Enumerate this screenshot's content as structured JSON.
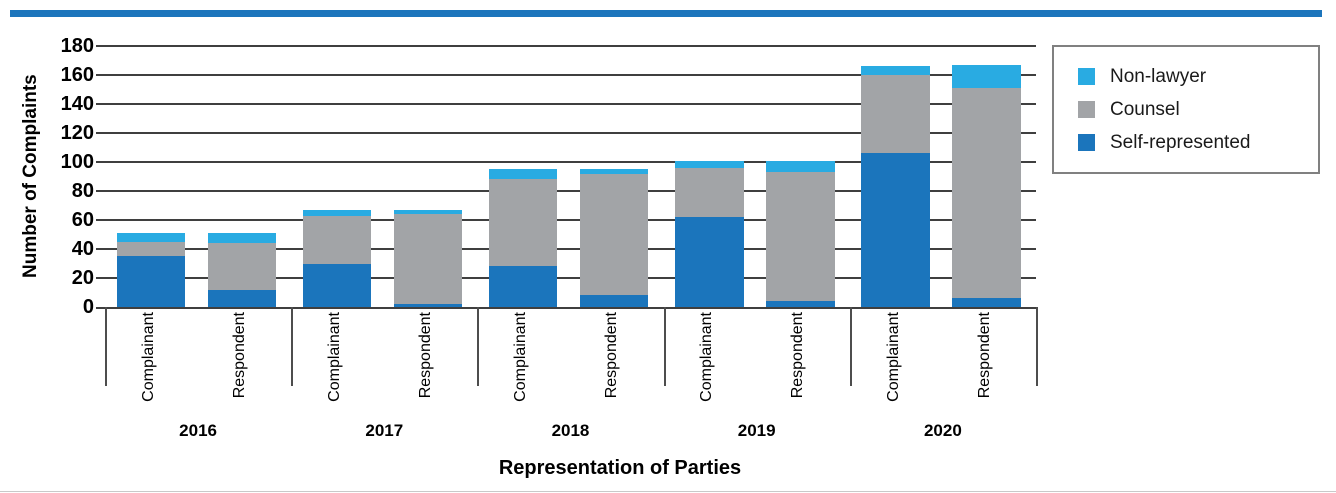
{
  "page": {
    "background": "#ffffff",
    "top_bar_color": "#1C75BC",
    "gridline_color": "#3f3f3f",
    "axis_color": "#3f3f3f"
  },
  "chart_data": {
    "type": "bar",
    "stacked": true,
    "title": "",
    "xlabel": "Representation of Parties",
    "ylabel": "Number of Complaints",
    "ylim": [
      0,
      180
    ],
    "ytick_step": 20,
    "grid": true,
    "legend_position": "top-right",
    "groups": [
      "2016",
      "2017",
      "2018",
      "2019",
      "2020"
    ],
    "bars_per_group": [
      "Complainant",
      "Respondent"
    ],
    "series": [
      {
        "name": "Self-represented",
        "color": "#1B75BC",
        "values": [
          35,
          12,
          30,
          2,
          28,
          8,
          62,
          4,
          106,
          6
        ]
      },
      {
        "name": "Counsel",
        "color": "#A2A4A7",
        "values": [
          10,
          32,
          33,
          62,
          60,
          84,
          34,
          89,
          54,
          145
        ]
      },
      {
        "name": "Non-lawyer",
        "color": "#29ABE2",
        "values": [
          6,
          7,
          4,
          3,
          7,
          3,
          5,
          8,
          6,
          16
        ]
      }
    ],
    "bar_totals": [
      51,
      51,
      67,
      67,
      95,
      95,
      101,
      101,
      166,
      167
    ]
  },
  "legend": {
    "items": [
      {
        "label": "Non-lawyer",
        "color": "#29ABE2"
      },
      {
        "label": "Counsel",
        "color": "#A2A4A7"
      },
      {
        "label": "Self-represented",
        "color": "#1B75BC"
      }
    ]
  }
}
